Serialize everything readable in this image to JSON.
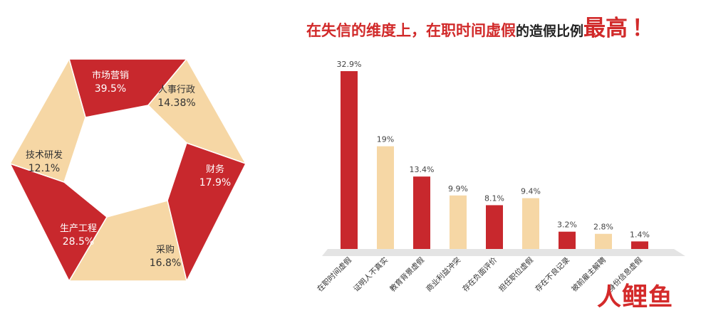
{
  "headline": {
    "part1": "在失信的维度上，在职时间虚假",
    "part2": "的造假比例",
    "part3": "最高",
    "part4": "！"
  },
  "brand": {
    "c1": "人",
    "c2": "鲤",
    "c3": "鱼"
  },
  "colors": {
    "red": "#c8282d",
    "cream": "#f6d7a5",
    "text": "#333333"
  },
  "chart_data": [
    {
      "type": "pie",
      "title": "",
      "categories": [
        "市场营销",
        "人事行政",
        "财务",
        "采购",
        "生产工程",
        "技术研发"
      ],
      "values": [
        39.5,
        14.38,
        17.9,
        16.8,
        28.5,
        12.1
      ],
      "value_labels": [
        "39.5%",
        "14.38%",
        "17.9%",
        "16.8%",
        "28.5%",
        "12.1%"
      ],
      "slice_colors": [
        "#c8282d",
        "#f6d7a5",
        "#c8282d",
        "#f6d7a5",
        "#c8282d",
        "#f6d7a5"
      ]
    },
    {
      "type": "bar",
      "title": "",
      "categories": [
        "在职时间虚假",
        "证明人不真实",
        "教育背景虚假",
        "商业利益冲突",
        "存在负面评价",
        "担任职位虚假",
        "存在不良记录",
        "被前雇主解聘",
        "身份信息虚假"
      ],
      "values": [
        32.9,
        19,
        13.4,
        9.9,
        8.1,
        9.4,
        3.2,
        2.8,
        1.4
      ],
      "value_labels": [
        "32.9%",
        "19%",
        "13.4%",
        "9.9%",
        "8.1%",
        "9.4%",
        "3.2%",
        "2.8%",
        "1.4%"
      ],
      "bar_colors": [
        "#c8282d",
        "#f6d7a5",
        "#c8282d",
        "#f6d7a5",
        "#c8282d",
        "#f6d7a5",
        "#c8282d",
        "#f6d7a5",
        "#c8282d"
      ],
      "ylim": [
        0,
        35
      ],
      "grid": false,
      "legend": "none"
    }
  ]
}
